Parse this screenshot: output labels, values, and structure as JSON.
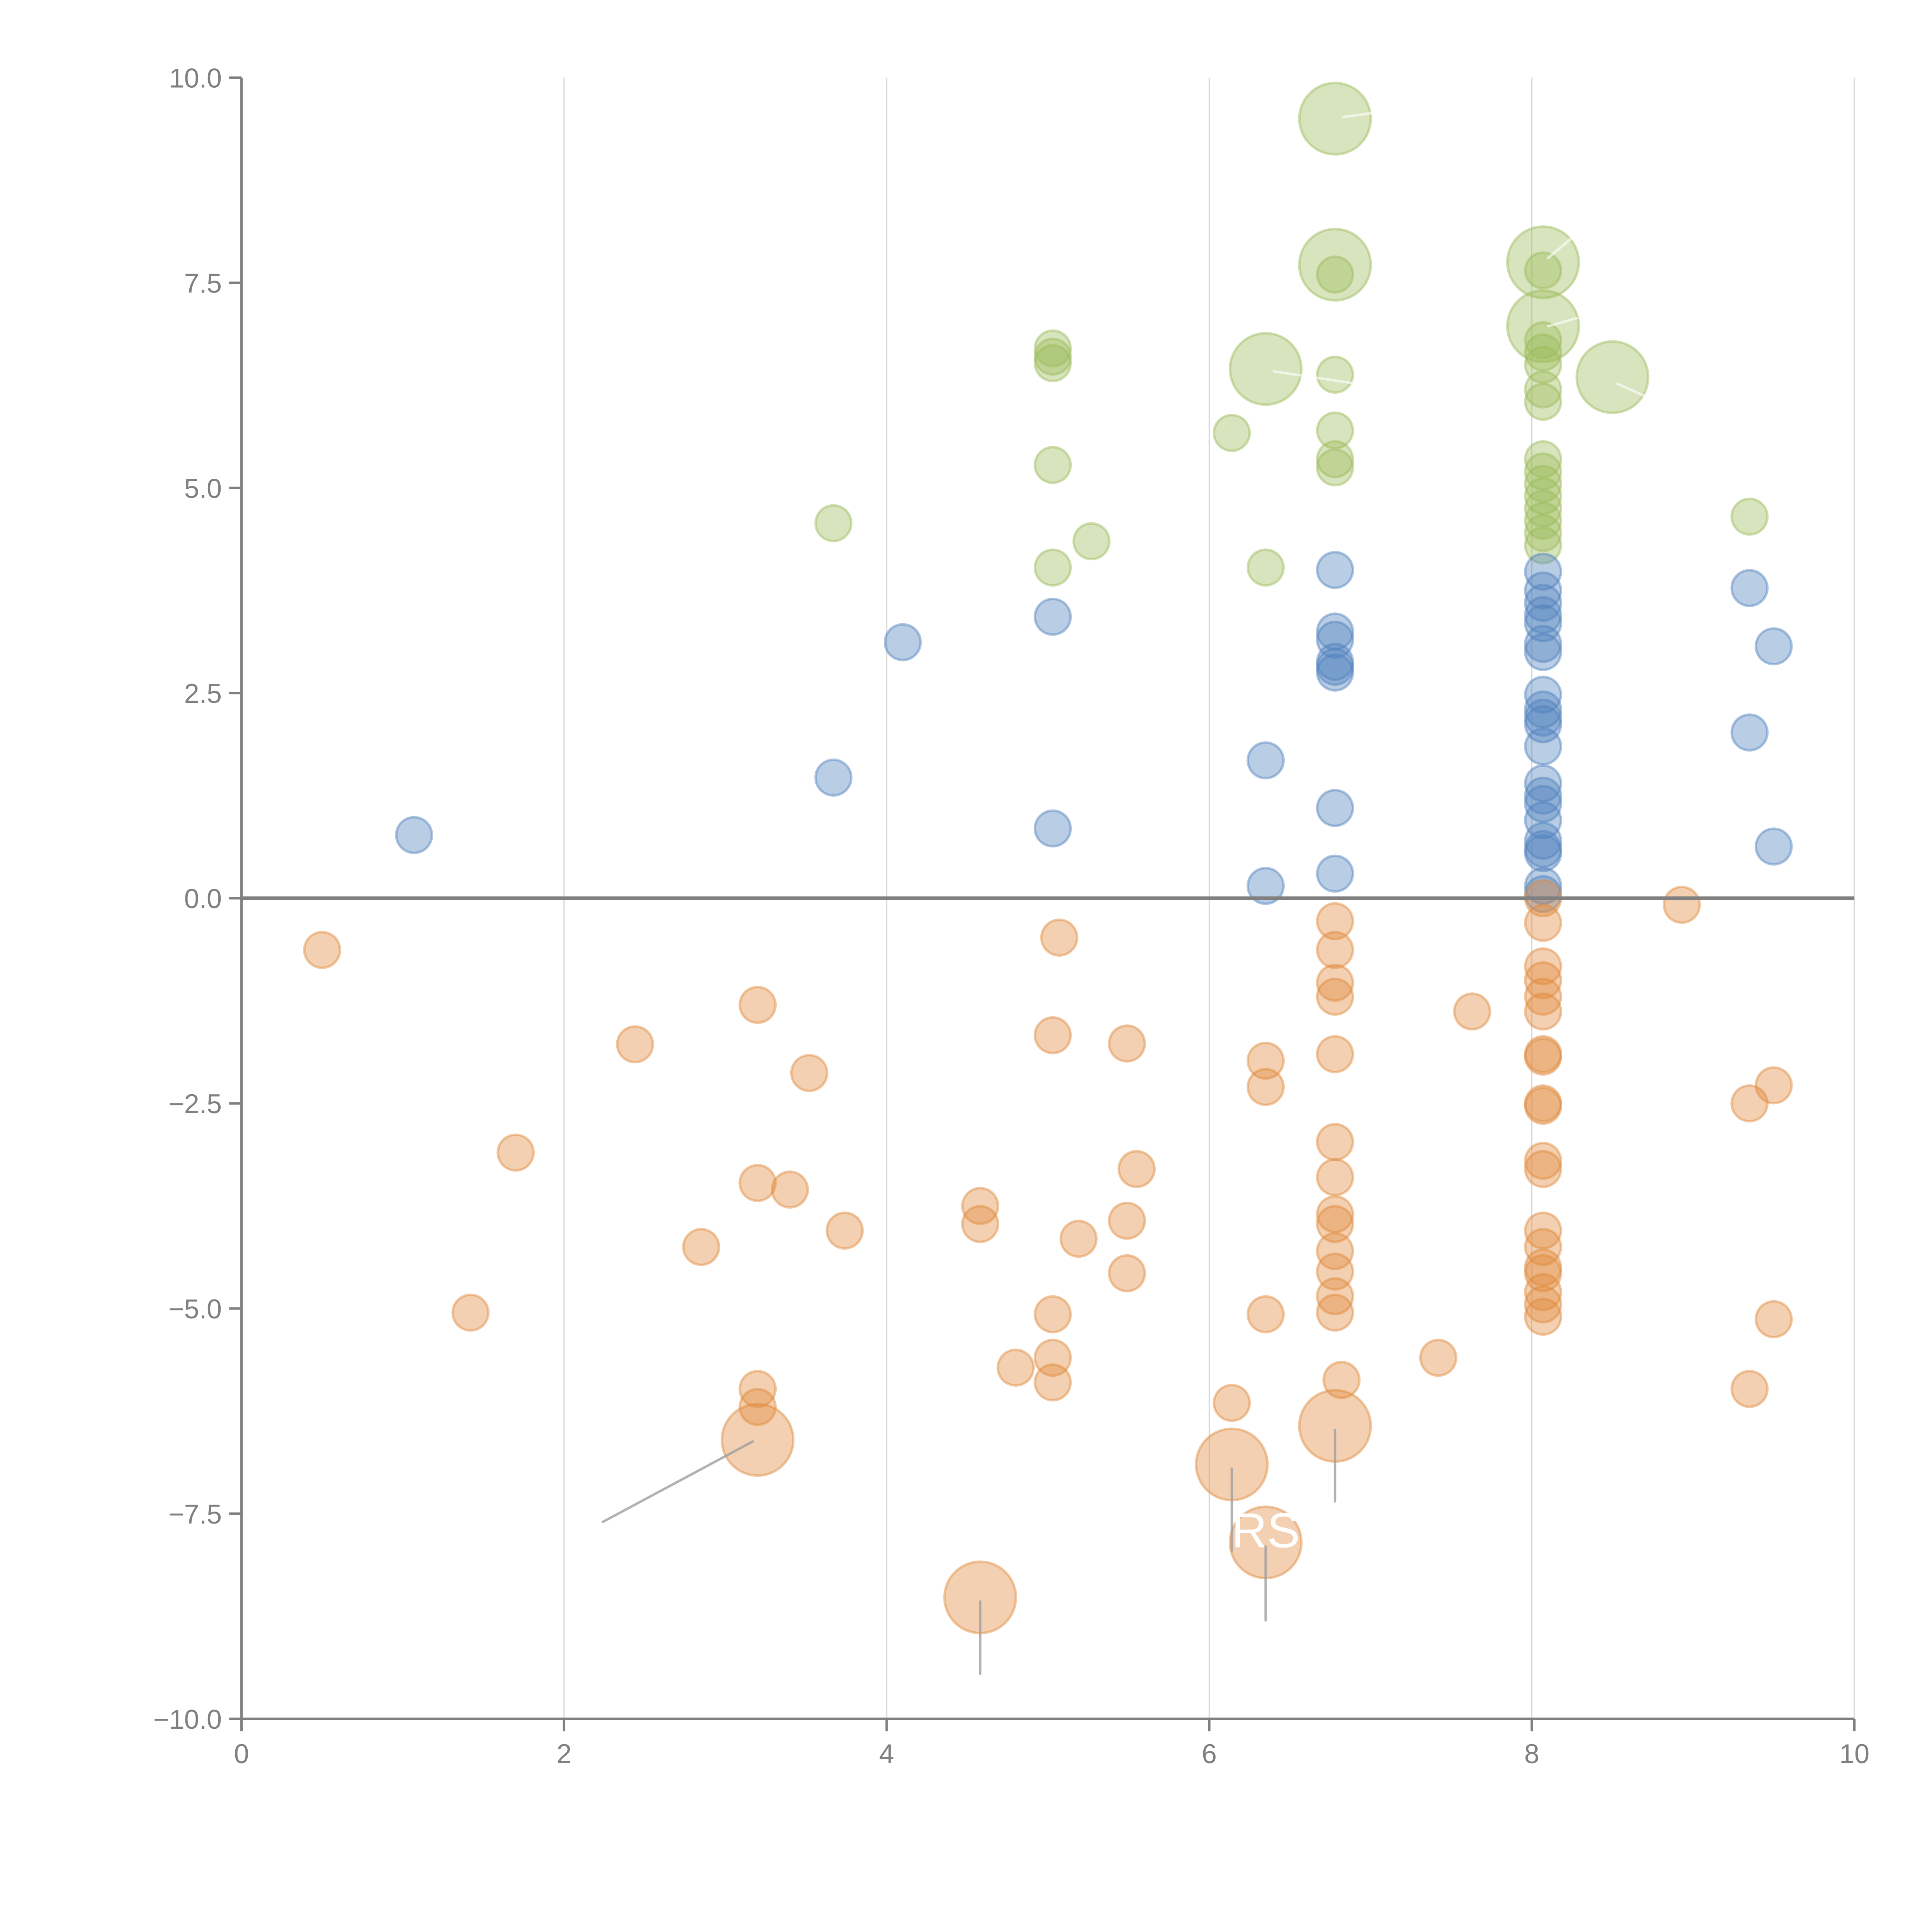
{
  "chart_data": {
    "type": "scatter",
    "title": "",
    "xlabel": "",
    "ylabel": "",
    "xlim": [
      0,
      10
    ],
    "ylim": [
      -10,
      10
    ],
    "grid": "vertical",
    "legend": "none",
    "x_ticks": [
      "0",
      "2",
      "4",
      "6",
      "8",
      "10"
    ],
    "x_tick_values": [
      0,
      2,
      4,
      6,
      8,
      10
    ],
    "y_ticks": [
      "10.0",
      "7.5",
      "5.0",
      "2.5",
      "0.0",
      "−2.5",
      "−5.0",
      "−7.5",
      "−10.0"
    ],
    "y_tick_values": [
      10,
      7.5,
      5,
      2.5,
      0,
      -2.5,
      -5,
      -7.5,
      -10
    ],
    "colors": {
      "green": "#9bbb59",
      "blue": "#4f81bd",
      "orange": "#e08a3c"
    },
    "series": [
      {
        "name": "green",
        "color": "#9bbb59",
        "points": [
          {
            "x": 6.78,
            "y": 9.5,
            "size": 2
          },
          {
            "x": 6.78,
            "y": 7.72,
            "size": 2
          },
          {
            "x": 6.78,
            "y": 7.6,
            "size": 1
          },
          {
            "x": 8.07,
            "y": 7.75,
            "size": 2
          },
          {
            "x": 8.07,
            "y": 7.65,
            "size": 1
          },
          {
            "x": 8.07,
            "y": 6.97,
            "size": 2
          },
          {
            "x": 8.07,
            "y": 6.8,
            "size": 1
          },
          {
            "x": 8.07,
            "y": 6.65,
            "size": 1
          },
          {
            "x": 8.07,
            "y": 6.5,
            "size": 1
          },
          {
            "x": 8.07,
            "y": 6.2,
            "size": 1
          },
          {
            "x": 8.07,
            "y": 6.05,
            "size": 1
          },
          {
            "x": 8.5,
            "y": 6.35,
            "size": 2
          },
          {
            "x": 6.35,
            "y": 6.45,
            "size": 2
          },
          {
            "x": 6.78,
            "y": 6.38,
            "size": 1
          },
          {
            "x": 6.78,
            "y": 5.7,
            "size": 1
          },
          {
            "x": 6.78,
            "y": 5.35,
            "size": 1
          },
          {
            "x": 6.78,
            "y": 5.25,
            "size": 1
          },
          {
            "x": 6.14,
            "y": 5.67,
            "size": 1
          },
          {
            "x": 5.03,
            "y": 6.7,
            "size": 1
          },
          {
            "x": 5.03,
            "y": 6.6,
            "size": 1
          },
          {
            "x": 5.03,
            "y": 6.52,
            "size": 1
          },
          {
            "x": 5.03,
            "y": 5.28,
            "size": 1
          },
          {
            "x": 5.03,
            "y": 4.03,
            "size": 1
          },
          {
            "x": 5.27,
            "y": 4.35,
            "size": 1
          },
          {
            "x": 3.67,
            "y": 4.57,
            "size": 1
          },
          {
            "x": 6.35,
            "y": 4.03,
            "size": 1
          },
          {
            "x": 9.35,
            "y": 4.65,
            "size": 1
          },
          {
            "x": 8.07,
            "y": 5.35,
            "size": 1
          },
          {
            "x": 8.07,
            "y": 5.2,
            "size": 1
          },
          {
            "x": 8.07,
            "y": 5.05,
            "size": 1
          },
          {
            "x": 8.07,
            "y": 4.9,
            "size": 1
          },
          {
            "x": 8.07,
            "y": 4.75,
            "size": 1
          },
          {
            "x": 8.07,
            "y": 4.6,
            "size": 1
          },
          {
            "x": 8.07,
            "y": 4.45,
            "size": 1
          },
          {
            "x": 8.07,
            "y": 4.3,
            "size": 1
          }
        ]
      },
      {
        "name": "blue",
        "color": "#4f81bd",
        "points": [
          {
            "x": 1.07,
            "y": 0.77,
            "size": 1
          },
          {
            "x": 3.67,
            "y": 1.47,
            "size": 1
          },
          {
            "x": 4.1,
            "y": 3.12,
            "size": 1
          },
          {
            "x": 5.03,
            "y": 3.43,
            "size": 1
          },
          {
            "x": 5.03,
            "y": 0.85,
            "size": 1
          },
          {
            "x": 6.35,
            "y": 1.68,
            "size": 1
          },
          {
            "x": 6.35,
            "y": 0.15,
            "size": 1
          },
          {
            "x": 6.78,
            "y": 4.0,
            "size": 1
          },
          {
            "x": 6.78,
            "y": 3.25,
            "size": 1
          },
          {
            "x": 6.78,
            "y": 3.15,
            "size": 1
          },
          {
            "x": 6.78,
            "y": 2.88,
            "size": 1
          },
          {
            "x": 6.78,
            "y": 2.82,
            "size": 1
          },
          {
            "x": 6.78,
            "y": 2.75,
            "size": 1
          },
          {
            "x": 6.78,
            "y": 1.1,
            "size": 1
          },
          {
            "x": 6.78,
            "y": 0.3,
            "size": 1
          },
          {
            "x": 8.07,
            "y": 3.98,
            "size": 1
          },
          {
            "x": 8.07,
            "y": 3.75,
            "size": 1
          },
          {
            "x": 8.07,
            "y": 3.6,
            "size": 1
          },
          {
            "x": 8.07,
            "y": 3.45,
            "size": 1
          },
          {
            "x": 8.07,
            "y": 3.35,
            "size": 1
          },
          {
            "x": 8.07,
            "y": 3.1,
            "size": 1
          },
          {
            "x": 8.07,
            "y": 3.0,
            "size": 1
          },
          {
            "x": 8.07,
            "y": 2.48,
            "size": 1
          },
          {
            "x": 8.07,
            "y": 2.3,
            "size": 1
          },
          {
            "x": 8.07,
            "y": 2.2,
            "size": 1
          },
          {
            "x": 8.07,
            "y": 2.12,
            "size": 1
          },
          {
            "x": 8.07,
            "y": 1.85,
            "size": 1
          },
          {
            "x": 8.07,
            "y": 1.4,
            "size": 1
          },
          {
            "x": 8.07,
            "y": 1.25,
            "size": 1
          },
          {
            "x": 8.07,
            "y": 1.15,
            "size": 1
          },
          {
            "x": 8.07,
            "y": 0.95,
            "size": 1
          },
          {
            "x": 8.07,
            "y": 0.7,
            "size": 1
          },
          {
            "x": 8.07,
            "y": 0.6,
            "size": 1
          },
          {
            "x": 8.07,
            "y": 0.55,
            "size": 1
          },
          {
            "x": 8.07,
            "y": 0.15,
            "size": 1
          },
          {
            "x": 8.07,
            "y": 0.05,
            "size": 1
          },
          {
            "x": 9.35,
            "y": 3.78,
            "size": 1
          },
          {
            "x": 9.5,
            "y": 3.07,
            "size": 1
          },
          {
            "x": 9.35,
            "y": 2.02,
            "size": 1
          },
          {
            "x": 9.5,
            "y": 0.63,
            "size": 1
          }
        ]
      },
      {
        "name": "orange",
        "color": "#e08a3c",
        "points": [
          {
            "x": 0.5,
            "y": -0.63,
            "size": 1
          },
          {
            "x": 1.42,
            "y": -5.05,
            "size": 1
          },
          {
            "x": 1.7,
            "y": -3.1,
            "size": 1
          },
          {
            "x": 2.44,
            "y": -1.78,
            "size": 1
          },
          {
            "x": 2.85,
            "y": -4.25,
            "size": 1
          },
          {
            "x": 3.2,
            "y": -1.3,
            "size": 1
          },
          {
            "x": 3.2,
            "y": -3.47,
            "size": 1
          },
          {
            "x": 3.4,
            "y": -3.55,
            "size": 1
          },
          {
            "x": 3.52,
            "y": -2.13,
            "size": 1
          },
          {
            "x": 3.74,
            "y": -4.05,
            "size": 1
          },
          {
            "x": 3.2,
            "y": -5.98,
            "size": 1
          },
          {
            "x": 3.2,
            "y": -6.2,
            "size": 1
          },
          {
            "x": 3.2,
            "y": -6.6,
            "size": 2
          },
          {
            "x": 4.58,
            "y": -3.75,
            "size": 1
          },
          {
            "x": 4.58,
            "y": -3.97,
            "size": 1
          },
          {
            "x": 4.58,
            "y": -8.52,
            "size": 2
          },
          {
            "x": 4.8,
            "y": -5.72,
            "size": 1
          },
          {
            "x": 5.03,
            "y": -1.67,
            "size": 1
          },
          {
            "x": 5.07,
            "y": -0.48,
            "size": 1
          },
          {
            "x": 5.03,
            "y": -5.07,
            "size": 1
          },
          {
            "x": 5.03,
            "y": -5.6,
            "size": 1
          },
          {
            "x": 5.03,
            "y": -5.9,
            "size": 1
          },
          {
            "x": 5.19,
            "y": -4.15,
            "size": 1
          },
          {
            "x": 5.49,
            "y": -1.77,
            "size": 1
          },
          {
            "x": 5.49,
            "y": -3.93,
            "size": 1
          },
          {
            "x": 5.49,
            "y": -4.57,
            "size": 1
          },
          {
            "x": 5.55,
            "y": -3.3,
            "size": 1
          },
          {
            "x": 6.14,
            "y": -6.15,
            "size": 1
          },
          {
            "x": 6.14,
            "y": -6.9,
            "size": 2
          },
          {
            "x": 6.35,
            "y": -1.98,
            "size": 1
          },
          {
            "x": 6.35,
            "y": -2.3,
            "size": 1
          },
          {
            "x": 6.35,
            "y": -5.07,
            "size": 1
          },
          {
            "x": 6.35,
            "y": -7.85,
            "size": 2
          },
          {
            "x": 6.78,
            "y": -0.28,
            "size": 1
          },
          {
            "x": 6.78,
            "y": -0.63,
            "size": 1
          },
          {
            "x": 6.78,
            "y": -1.03,
            "size": 1
          },
          {
            "x": 6.78,
            "y": -1.2,
            "size": 1
          },
          {
            "x": 6.78,
            "y": -1.9,
            "size": 1
          },
          {
            "x": 6.78,
            "y": -2.97,
            "size": 1
          },
          {
            "x": 6.78,
            "y": -3.4,
            "size": 1
          },
          {
            "x": 6.78,
            "y": -3.85,
            "size": 1
          },
          {
            "x": 6.78,
            "y": -3.97,
            "size": 1
          },
          {
            "x": 6.78,
            "y": -4.3,
            "size": 1
          },
          {
            "x": 6.78,
            "y": -4.55,
            "size": 1
          },
          {
            "x": 6.78,
            "y": -4.85,
            "size": 1
          },
          {
            "x": 6.78,
            "y": -5.05,
            "size": 1
          },
          {
            "x": 6.82,
            "y": -5.87,
            "size": 1
          },
          {
            "x": 6.78,
            "y": -6.43,
            "size": 2
          },
          {
            "x": 7.42,
            "y": -5.6,
            "size": 1
          },
          {
            "x": 7.63,
            "y": -1.38,
            "size": 1
          },
          {
            "x": 8.07,
            "y": 0.0,
            "size": 1
          },
          {
            "x": 8.07,
            "y": -0.3,
            "size": 1
          },
          {
            "x": 8.07,
            "y": -0.83,
            "size": 1
          },
          {
            "x": 8.07,
            "y": -1.0,
            "size": 1
          },
          {
            "x": 8.07,
            "y": -1.2,
            "size": 1
          },
          {
            "x": 8.07,
            "y": -1.38,
            "size": 1
          },
          {
            "x": 8.07,
            "y": -1.9,
            "size": 1
          },
          {
            "x": 8.07,
            "y": -1.93,
            "size": 1
          },
          {
            "x": 8.07,
            "y": -2.5,
            "size": 1
          },
          {
            "x": 8.07,
            "y": -2.53,
            "size": 1
          },
          {
            "x": 8.07,
            "y": -3.2,
            "size": 1
          },
          {
            "x": 8.07,
            "y": -3.3,
            "size": 1
          },
          {
            "x": 8.07,
            "y": -4.05,
            "size": 1
          },
          {
            "x": 8.07,
            "y": -4.25,
            "size": 1
          },
          {
            "x": 8.07,
            "y": -4.5,
            "size": 1
          },
          {
            "x": 8.07,
            "y": -4.57,
            "size": 1
          },
          {
            "x": 8.07,
            "y": -4.8,
            "size": 1
          },
          {
            "x": 8.07,
            "y": -4.95,
            "size": 1
          },
          {
            "x": 8.07,
            "y": -5.1,
            "size": 1
          },
          {
            "x": 8.93,
            "y": -0.08,
            "size": 1
          },
          {
            "x": 9.35,
            "y": -2.5,
            "size": 1
          },
          {
            "x": 9.5,
            "y": -2.28,
            "size": 1
          },
          {
            "x": 9.5,
            "y": -5.13,
            "size": 1
          },
          {
            "x": 9.35,
            "y": -5.98,
            "size": 1
          }
        ]
      }
    ],
    "annotations": [
      {
        "text": "RS",
        "x": 6.35,
        "y": -7.7
      }
    ],
    "leader_lines": [
      {
        "from": [
          3.17,
          -6.62
        ],
        "to": [
          2.24,
          -7.6
        ],
        "style": "gray"
      },
      {
        "from": [
          4.58,
          -8.57
        ],
        "to": [
          4.58,
          -9.45
        ],
        "style": "gray"
      },
      {
        "from": [
          6.14,
          -6.95
        ],
        "to": [
          6.14,
          -7.95
        ],
        "style": "gray"
      },
      {
        "from": [
          6.35,
          -7.9
        ],
        "to": [
          6.35,
          -8.8
        ],
        "style": "gray"
      },
      {
        "from": [
          6.78,
          -6.48
        ],
        "to": [
          6.78,
          -7.35
        ],
        "style": "gray"
      },
      {
        "from": [
          6.83,
          9.52
        ],
        "to": [
          7.02,
          9.57
        ],
        "style": "light"
      },
      {
        "from": [
          6.4,
          6.42
        ],
        "to": [
          6.88,
          6.28
        ],
        "style": "light"
      },
      {
        "from": [
          8.1,
          7.8
        ],
        "to": [
          8.25,
          8.05
        ],
        "style": "light"
      },
      {
        "from": [
          8.1,
          6.97
        ],
        "to": [
          8.28,
          7.07
        ],
        "style": "light"
      },
      {
        "from": [
          8.53,
          6.27
        ],
        "to": [
          8.7,
          6.12
        ],
        "style": "light"
      }
    ]
  }
}
